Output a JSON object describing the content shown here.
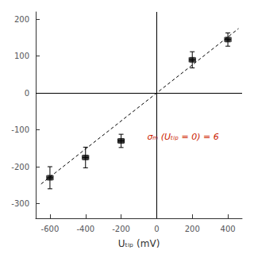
{
  "chart_data": {
    "type": "scatter",
    "xlabel": "Uₜᵢₚ (mV)",
    "annotation": "σₘ (Uₜᵢₚ = 0) = 6",
    "annotation_color": "#cc2200",
    "series": [
      {
        "type": "scatter",
        "color": "#000000",
        "marker": "square",
        "x": [
          -600,
          -400,
          -200,
          200,
          400
        ],
        "values": [
          -230,
          -175,
          -130,
          90,
          145
        ],
        "xerr": [
          18,
          18,
          18,
          18,
          18
        ],
        "yerr": [
          30,
          28,
          18,
          22,
          18
        ]
      },
      {
        "type": "line",
        "color": "#000000",
        "line_style": "dashed",
        "x": [
          -650,
          460
        ],
        "values": [
          -247,
          174.8
        ]
      }
    ],
    "hlines": [
      0
    ],
    "vlines": [
      0
    ],
    "xlim": [
      -680,
      480
    ],
    "ylim": [
      -340,
      220
    ],
    "xticks": [
      -600,
      -400,
      -200,
      0,
      200,
      400
    ],
    "yticks": [
      -300,
      -200,
      -100,
      0,
      100,
      200
    ],
    "grid": false
  }
}
